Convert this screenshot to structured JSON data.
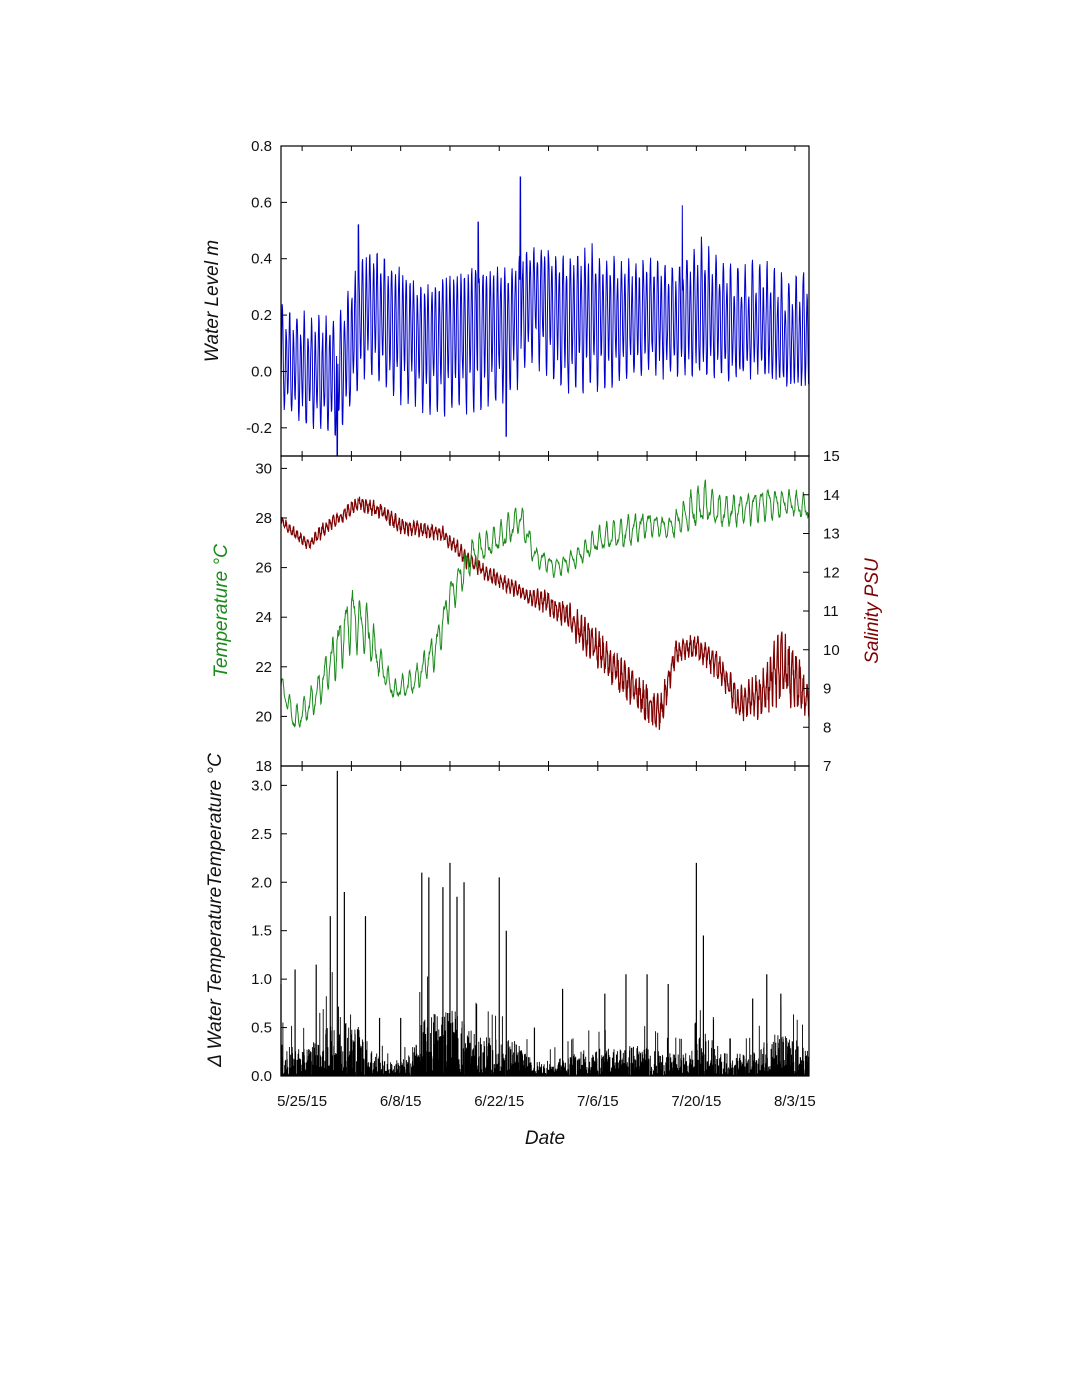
{
  "chart_data": [
    {
      "type": "line",
      "panel": "water-level",
      "ylabel": "Water Level m",
      "ylim": [
        -0.3,
        0.8
      ],
      "yticks": [
        "-0.2",
        "0.0",
        "0.2",
        "0.4",
        "0.6",
        "0.8"
      ],
      "xlim": [
        "2015-05-22",
        "2015-08-05"
      ],
      "grid": false,
      "legend": "none",
      "series": [
        {
          "color": "#0000cc",
          "x": [
            "2015-05-22",
            "2015-05-26",
            "2015-05-30",
            "2015-06-03",
            "2015-06-07",
            "2015-06-11",
            "2015-06-15",
            "2015-06-19",
            "2015-06-23",
            "2015-06-27",
            "2015-07-01",
            "2015-07-05",
            "2015-07-09",
            "2015-07-13",
            "2015-07-17",
            "2015-07-21",
            "2015-07-25",
            "2015-07-29",
            "2015-08-02",
            "2015-08-05"
          ],
          "mean": [
            0.04,
            0.0,
            -0.02,
            0.22,
            0.16,
            0.1,
            0.12,
            0.14,
            0.15,
            0.26,
            0.18,
            0.2,
            0.18,
            0.2,
            0.18,
            0.22,
            0.16,
            0.18,
            0.12,
            0.14
          ],
          "amplitude": [
            0.15,
            0.16,
            0.17,
            0.19,
            0.2,
            0.18,
            0.21,
            0.22,
            0.19,
            0.17,
            0.2,
            0.21,
            0.18,
            0.17,
            0.16,
            0.2,
            0.17,
            0.16,
            0.17,
            0.17
          ],
          "peaks": [
            {
              "x": "2015-06-02",
              "y": 0.52
            },
            {
              "x": "2015-06-19",
              "y": 0.53
            },
            {
              "x": "2015-06-25",
              "y": 0.69
            },
            {
              "x": "2015-07-18",
              "y": 0.59
            },
            {
              "x": "2015-05-30",
              "y": -0.31
            },
            {
              "x": "2015-06-23",
              "y": -0.23
            }
          ]
        }
      ]
    },
    {
      "type": "line",
      "panel": "temperature-salinity",
      "ylabel": "Temperature °C",
      "ylim": [
        18,
        30.5
      ],
      "yticks": [
        "18",
        "20",
        "22",
        "24",
        "26",
        "28",
        "30"
      ],
      "y2label": "Salinity PSU",
      "y2lim": [
        7,
        15
      ],
      "y2ticks": [
        "7",
        "8",
        "9",
        "10",
        "11",
        "12",
        "13",
        "14",
        "15"
      ],
      "xlim": [
        "2015-05-22",
        "2015-08-05"
      ],
      "grid": false,
      "legend": "none",
      "series": [
        {
          "axis": "left",
          "color": "#1a8a1a",
          "x": [
            "2015-05-22",
            "2015-05-24",
            "2015-05-27",
            "2015-05-30",
            "2015-06-01",
            "2015-06-03",
            "2015-06-05",
            "2015-06-07",
            "2015-06-10",
            "2015-06-13",
            "2015-06-15",
            "2015-06-18",
            "2015-06-21",
            "2015-06-23",
            "2015-06-25",
            "2015-06-27",
            "2015-06-30",
            "2015-07-03",
            "2015-07-06",
            "2015-07-10",
            "2015-07-13",
            "2015-07-16",
            "2015-07-19",
            "2015-07-21",
            "2015-07-24",
            "2015-07-27",
            "2015-07-30",
            "2015-08-02",
            "2015-08-05"
          ],
          "y": [
            21.3,
            19.8,
            20.8,
            22.8,
            24.0,
            23.6,
            22.2,
            21.0,
            21.4,
            22.8,
            24.8,
            26.5,
            27.0,
            27.4,
            28.0,
            26.5,
            26.0,
            26.4,
            27.1,
            27.4,
            27.8,
            27.6,
            28.2,
            28.6,
            28.2,
            28.4,
            28.6,
            28.6,
            28.4
          ],
          "noise": [
            0.3,
            0.4,
            0.5,
            0.8,
            1.0,
            0.9,
            0.5,
            0.3,
            0.4,
            0.6,
            0.6,
            0.5,
            0.4,
            0.5,
            0.5,
            0.3,
            0.3,
            0.3,
            0.4,
            0.5,
            0.4,
            0.3,
            0.6,
            0.7,
            0.5,
            0.5,
            0.5,
            0.4,
            0.4
          ]
        },
        {
          "axis": "right",
          "color": "#7f0000",
          "x": [
            "2015-05-22",
            "2015-05-24",
            "2015-05-26",
            "2015-05-28",
            "2015-05-31",
            "2015-06-02",
            "2015-06-05",
            "2015-06-08",
            "2015-06-11",
            "2015-06-14",
            "2015-06-17",
            "2015-06-20",
            "2015-06-23",
            "2015-06-26",
            "2015-06-29",
            "2015-07-02",
            "2015-07-05",
            "2015-07-08",
            "2015-07-11",
            "2015-07-14",
            "2015-07-15",
            "2015-07-17",
            "2015-07-20",
            "2015-07-23",
            "2015-07-26",
            "2015-07-29",
            "2015-08-01",
            "2015-08-03",
            "2015-08-05"
          ],
          "y": [
            13.3,
            13.0,
            12.7,
            13.1,
            13.5,
            13.8,
            13.6,
            13.2,
            13.1,
            13.0,
            12.4,
            12.0,
            11.7,
            11.4,
            11.2,
            10.8,
            10.2,
            9.6,
            9.0,
            8.4,
            8.4,
            9.9,
            10.1,
            9.6,
            8.6,
            8.8,
            9.6,
            9.2,
            8.6
          ],
          "noise": [
            0.15,
            0.15,
            0.15,
            0.2,
            0.2,
            0.2,
            0.2,
            0.2,
            0.2,
            0.2,
            0.25,
            0.2,
            0.2,
            0.2,
            0.3,
            0.4,
            0.5,
            0.5,
            0.5,
            0.5,
            0.5,
            0.3,
            0.3,
            0.4,
            0.4,
            0.6,
            0.9,
            0.8,
            0.5
          ]
        }
      ]
    },
    {
      "type": "line",
      "panel": "delta-temperature",
      "ylabel": "Δ Water TemperatureTemperature °C",
      "ylim": [
        0,
        3.2
      ],
      "yticks": [
        "0.0",
        "0.5",
        "1.0",
        "1.5",
        "2.0",
        "2.5",
        "3.0"
      ],
      "xlabel": "Date",
      "xticks": [
        "5/25/15",
        "6/8/15",
        "6/22/15",
        "7/6/15",
        "7/20/15",
        "8/3/15"
      ],
      "xtick_dates": [
        "2015-05-25",
        "2015-06-08",
        "2015-06-22",
        "2015-07-06",
        "2015-07-20",
        "2015-08-03"
      ],
      "xlim": [
        "2015-05-22",
        "2015-08-05"
      ],
      "grid": false,
      "legend": "none",
      "series": [
        {
          "color": "#000000",
          "x": [
            "2015-05-22",
            "2015-05-25",
            "2015-05-28",
            "2015-05-30",
            "2015-06-01",
            "2015-06-03",
            "2015-06-06",
            "2015-06-09",
            "2015-06-11",
            "2015-06-14",
            "2015-06-16",
            "2015-06-19",
            "2015-06-22",
            "2015-06-24",
            "2015-06-27",
            "2015-07-01",
            "2015-07-04",
            "2015-07-08",
            "2015-07-12",
            "2015-07-16",
            "2015-07-19",
            "2015-07-21",
            "2015-07-24",
            "2015-07-28",
            "2015-07-31",
            "2015-08-03",
            "2015-08-05"
          ],
          "envelope": [
            0.35,
            0.3,
            0.45,
            0.8,
            0.7,
            0.4,
            0.15,
            0.2,
            0.6,
            0.8,
            0.7,
            0.45,
            0.4,
            0.4,
            0.15,
            0.2,
            0.3,
            0.3,
            0.35,
            0.25,
            0.25,
            0.5,
            0.25,
            0.25,
            0.5,
            0.4,
            0.3
          ],
          "peaks": [
            {
              "x": "2015-05-22",
              "y": 0.95
            },
            {
              "x": "2015-05-24",
              "y": 1.1
            },
            {
              "x": "2015-05-27",
              "y": 1.15
            },
            {
              "x": "2015-05-29",
              "y": 1.65
            },
            {
              "x": "2015-05-30",
              "y": 3.15
            },
            {
              "x": "2015-05-31",
              "y": 1.9
            },
            {
              "x": "2015-06-03",
              "y": 1.65
            },
            {
              "x": "2015-06-05",
              "y": 0.6
            },
            {
              "x": "2015-06-08",
              "y": 0.6
            },
            {
              "x": "2015-06-11",
              "y": 2.1
            },
            {
              "x": "2015-06-12",
              "y": 2.05
            },
            {
              "x": "2015-06-14",
              "y": 1.95
            },
            {
              "x": "2015-06-15",
              "y": 2.2
            },
            {
              "x": "2015-06-16",
              "y": 1.85
            },
            {
              "x": "2015-06-17",
              "y": 2.0
            },
            {
              "x": "2015-06-22",
              "y": 2.05
            },
            {
              "x": "2015-06-23",
              "y": 1.5
            },
            {
              "x": "2015-06-27",
              "y": 0.5
            },
            {
              "x": "2015-07-01",
              "y": 0.9
            },
            {
              "x": "2015-07-07",
              "y": 0.85
            },
            {
              "x": "2015-07-10",
              "y": 1.05
            },
            {
              "x": "2015-07-13",
              "y": 1.05
            },
            {
              "x": "2015-07-16",
              "y": 0.95
            },
            {
              "x": "2015-07-20",
              "y": 2.2
            },
            {
              "x": "2015-07-21",
              "y": 1.45
            },
            {
              "x": "2015-07-28",
              "y": 0.8
            },
            {
              "x": "2015-07-30",
              "y": 1.05
            },
            {
              "x": "2015-08-01",
              "y": 0.85
            }
          ]
        }
      ]
    }
  ]
}
